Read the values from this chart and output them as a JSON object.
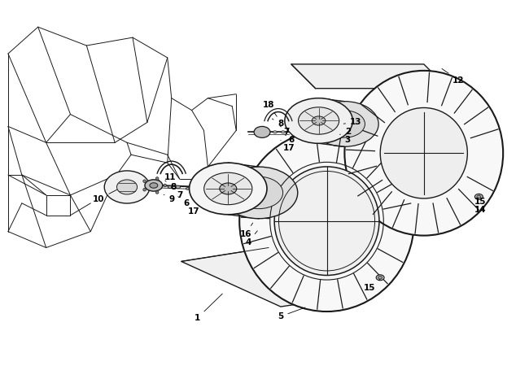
{
  "background_color": "#ffffff",
  "figure_width": 6.5,
  "figure_height": 4.5,
  "dpi": 100,
  "line_color": "#1a1a1a",
  "label_fontsize": 7.5,
  "text_color": "#000000",
  "frame_lines": [
    [
      [
        0.08,
        3.85
      ],
      [
        0.45,
        4.18
      ]
    ],
    [
      [
        0.45,
        4.18
      ],
      [
        1.05,
        3.95
      ]
    ],
    [
      [
        1.05,
        3.95
      ],
      [
        1.62,
        4.05
      ]
    ],
    [
      [
        0.08,
        3.85
      ],
      [
        0.08,
        2.95
      ]
    ],
    [
      [
        0.08,
        2.95
      ],
      [
        0.55,
        2.75
      ]
    ],
    [
      [
        0.55,
        2.75
      ],
      [
        1.4,
        2.75
      ]
    ],
    [
      [
        1.4,
        2.75
      ],
      [
        1.8,
        3.0
      ]
    ],
    [
      [
        1.8,
        3.0
      ],
      [
        1.62,
        4.05
      ]
    ],
    [
      [
        0.08,
        3.85
      ],
      [
        0.55,
        2.75
      ]
    ],
    [
      [
        0.45,
        4.18
      ],
      [
        0.85,
        3.1
      ]
    ],
    [
      [
        1.05,
        3.95
      ],
      [
        1.4,
        2.75
      ]
    ],
    [
      [
        0.08,
        2.95
      ],
      [
        0.25,
        2.35
      ]
    ],
    [
      [
        0.25,
        2.35
      ],
      [
        0.85,
        2.1
      ]
    ],
    [
      [
        0.85,
        2.1
      ],
      [
        1.42,
        2.35
      ]
    ],
    [
      [
        1.42,
        2.35
      ],
      [
        1.6,
        2.6
      ]
    ],
    [
      [
        1.6,
        2.6
      ],
      [
        1.55,
        2.75
      ]
    ],
    [
      [
        0.55,
        2.75
      ],
      [
        0.85,
        2.1
      ]
    ],
    [
      [
        0.08,
        2.95
      ],
      [
        0.08,
        2.35
      ]
    ],
    [
      [
        0.08,
        2.35
      ],
      [
        0.25,
        2.35
      ]
    ],
    [
      [
        0.08,
        2.35
      ],
      [
        0.08,
        1.65
      ]
    ],
    [
      [
        0.08,
        1.65
      ],
      [
        0.55,
        1.45
      ]
    ],
    [
      [
        0.55,
        1.45
      ],
      [
        1.1,
        1.65
      ]
    ],
    [
      [
        1.1,
        1.65
      ],
      [
        1.42,
        2.35
      ]
    ],
    [
      [
        0.25,
        2.35
      ],
      [
        0.55,
        1.45
      ]
    ],
    [
      [
        0.85,
        2.1
      ],
      [
        1.1,
        1.65
      ]
    ],
    [
      [
        0.08,
        2.35
      ],
      [
        0.55,
        2.1
      ]
    ],
    [
      [
        0.25,
        2.35
      ],
      [
        0.55,
        2.1
      ]
    ],
    [
      [
        0.55,
        2.1
      ],
      [
        0.85,
        2.1
      ]
    ],
    [
      [
        0.08,
        1.65
      ],
      [
        0.25,
        2.0
      ]
    ],
    [
      [
        0.25,
        2.0
      ],
      [
        0.55,
        1.85
      ]
    ],
    [
      [
        0.55,
        1.85
      ],
      [
        0.85,
        1.85
      ]
    ],
    [
      [
        0.85,
        1.85
      ],
      [
        1.1,
        2.0
      ]
    ],
    [
      [
        0.55,
        2.1
      ],
      [
        0.55,
        1.85
      ]
    ],
    [
      [
        0.85,
        2.1
      ],
      [
        0.85,
        1.85
      ]
    ],
    [
      [
        0.85,
        3.1
      ],
      [
        1.55,
        2.75
      ]
    ],
    [
      [
        0.85,
        3.1
      ],
      [
        0.55,
        2.75
      ]
    ],
    [
      [
        1.62,
        4.05
      ],
      [
        2.05,
        3.8
      ]
    ],
    [
      [
        1.8,
        3.0
      ],
      [
        2.05,
        3.8
      ]
    ],
    [
      [
        1.6,
        2.6
      ],
      [
        2.05,
        2.5
      ]
    ],
    [
      [
        2.05,
        3.8
      ],
      [
        2.1,
        3.3
      ]
    ],
    [
      [
        2.1,
        3.3
      ],
      [
        2.05,
        2.5
      ]
    ],
    [
      [
        2.05,
        2.5
      ],
      [
        2.2,
        2.3
      ]
    ],
    [
      [
        2.2,
        2.3
      ],
      [
        2.5,
        2.3
      ]
    ],
    [
      [
        2.5,
        2.3
      ],
      [
        2.55,
        2.45
      ]
    ],
    [
      [
        1.55,
        2.75
      ],
      [
        2.05,
        2.6
      ]
    ],
    [
      [
        2.05,
        2.6
      ],
      [
        2.2,
        2.3
      ]
    ],
    [
      [
        2.1,
        3.3
      ],
      [
        2.35,
        3.15
      ]
    ],
    [
      [
        2.35,
        3.15
      ],
      [
        2.5,
        2.9
      ]
    ],
    [
      [
        2.5,
        2.9
      ],
      [
        2.55,
        2.45
      ]
    ],
    [
      [
        2.35,
        3.15
      ],
      [
        2.55,
        3.3
      ]
    ],
    [
      [
        2.55,
        3.3
      ],
      [
        2.85,
        3.2
      ]
    ],
    [
      [
        2.85,
        3.2
      ],
      [
        2.9,
        2.9
      ]
    ],
    [
      [
        2.9,
        2.9
      ],
      [
        2.55,
        2.45
      ]
    ],
    [
      [
        2.55,
        3.3
      ],
      [
        2.9,
        3.35
      ]
    ],
    [
      [
        2.9,
        3.35
      ],
      [
        2.9,
        2.9
      ]
    ]
  ]
}
